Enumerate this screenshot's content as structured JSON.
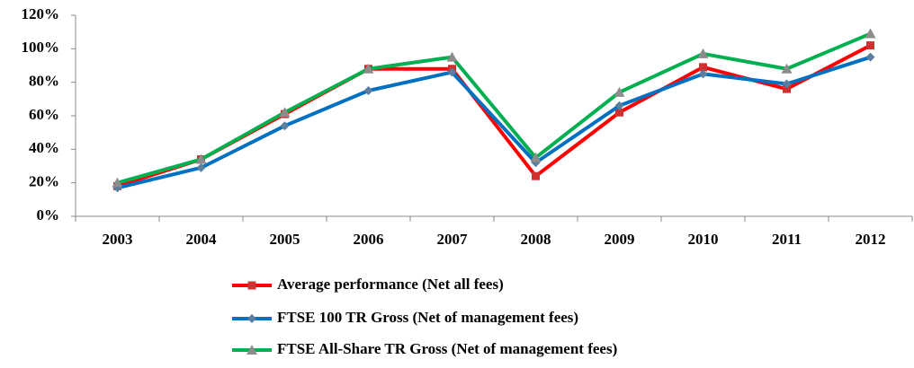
{
  "chart_data": {
    "type": "line",
    "categories": [
      "2003",
      "2004",
      "2005",
      "2006",
      "2007",
      "2008",
      "2009",
      "2010",
      "2011",
      "2012"
    ],
    "series": [
      {
        "name": "Average performance (Net all fees)",
        "color": "#ff0000",
        "marker": "square",
        "marker_color": "#d03030",
        "values": [
          18,
          34,
          61,
          88,
          88,
          24,
          62,
          89,
          76,
          102
        ]
      },
      {
        "name": "FTSE 100 TR Gross (Net of management fees)",
        "color": "#0070c0",
        "marker": "diamond",
        "marker_color": "#5a7fa0",
        "values": [
          17,
          29,
          54,
          75,
          86,
          32,
          66,
          85,
          79,
          95
        ]
      },
      {
        "name": "FTSE All-Share TR Gross (Net of management fees)",
        "color": "#00b050",
        "marker": "triangle",
        "marker_color": "#8c8c8c",
        "values": [
          20,
          34,
          62,
          88,
          95,
          35,
          74,
          97,
          88,
          109
        ]
      }
    ],
    "ylim": [
      0,
      120
    ],
    "yticks": [
      {
        "value": 0,
        "label": "0%"
      },
      {
        "value": 20,
        "label": "20%"
      },
      {
        "value": 40,
        "label": "40%"
      },
      {
        "value": 60,
        "label": "60%"
      },
      {
        "value": 80,
        "label": "80%"
      },
      {
        "value": 100,
        "label": "100%"
      },
      {
        "value": 120,
        "label": "120%"
      }
    ],
    "grid": false,
    "legend": "bottom"
  }
}
